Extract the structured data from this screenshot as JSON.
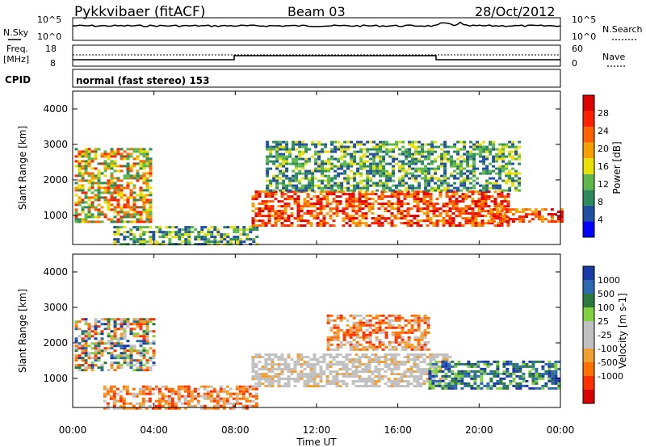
{
  "header": {
    "station": "Pykkvibaer (fitACF)",
    "beam": "Beam 03",
    "date": "28/Oct/2012"
  },
  "noise_panel": {
    "left_label": "N.Sky",
    "right_label": "N.Search",
    "left_ticks": [
      "10^5",
      "10^0"
    ],
    "right_ticks": [
      "10^5",
      "10^0"
    ]
  },
  "freq_panel": {
    "left_label_top": "Freq.",
    "left_label_bottom": "[MHz]",
    "right_label": "Nave",
    "left_ticks": [
      "18",
      "8"
    ],
    "right_ticks": [
      "60",
      "0"
    ]
  },
  "cpid": {
    "label": "CPID",
    "text": "normal (fast stereo) 153"
  },
  "colors": {
    "power_scale": [
      "#0000ff",
      "#1f4fa0",
      "#2d8a5a",
      "#5cb84a",
      "#e8e000",
      "#f5a000",
      "#ff6000",
      "#ff2000",
      "#e00000"
    ],
    "velocity_scale": [
      "#1a3aa8",
      "#2a6ab0",
      "#2a7a40",
      "#80d040",
      "#c0c0c0",
      "#c0c0c0",
      "#f0a030",
      "#ff7000",
      "#ff3000",
      "#dd0000"
    ]
  },
  "chart_data": [
    {
      "type": "heatmap",
      "title": "Power",
      "xlabel": "Time UT",
      "ylabel": "Slant Range [km]",
      "x_ticks": [
        "00:00",
        "04:00",
        "08:00",
        "12:00",
        "16:00",
        "20:00",
        "00:00"
      ],
      "y_ticks": [
        "1000",
        "2000",
        "3000",
        "4000"
      ],
      "ylim": [
        180,
        4500
      ],
      "colorbar_label": "Power [dB]",
      "colorbar_ticks": [
        "4",
        "8",
        "12",
        "16",
        "20",
        "24",
        "28"
      ],
      "regions": [
        {
          "t0": 0.1,
          "t1": 3.9,
          "r0": 850,
          "r1": 2900,
          "level": "mid-high"
        },
        {
          "t0": 2.0,
          "t1": 9.0,
          "r0": 180,
          "r1": 700,
          "level": "mid"
        },
        {
          "t0": 8.8,
          "t1": 21.5,
          "r0": 700,
          "r1": 1700,
          "level": "high"
        },
        {
          "t0": 9.5,
          "t1": 22.0,
          "r0": 1700,
          "r1": 3100,
          "level": "mid"
        },
        {
          "t0": 20.5,
          "t1": 24.0,
          "r0": 800,
          "r1": 1200,
          "level": "high"
        }
      ]
    },
    {
      "type": "heatmap",
      "title": "Velocity",
      "xlabel": "Time UT",
      "ylabel": "Slant Range [km]",
      "x_ticks": [
        "00:00",
        "04:00",
        "08:00",
        "12:00",
        "16:00",
        "20:00",
        "00:00"
      ],
      "y_ticks": [
        "1000",
        "2000",
        "3000",
        "4000"
      ],
      "ylim": [
        180,
        4500
      ],
      "colorbar_label": "Velocity [m s-1]",
      "colorbar_ticks": [
        "1000",
        "500",
        "100",
        "25",
        "-25",
        "-100",
        "-500",
        "-1000"
      ],
      "regions": [
        {
          "t0": 0.1,
          "t1": 4.0,
          "r0": 1200,
          "r1": 2700,
          "level": "mixed"
        },
        {
          "t0": 1.5,
          "t1": 9.0,
          "r0": 180,
          "r1": 800,
          "level": "negative"
        },
        {
          "t0": 8.8,
          "t1": 18.5,
          "r0": 800,
          "r1": 1700,
          "level": "near-zero"
        },
        {
          "t0": 12.5,
          "t1": 17.5,
          "r0": 1800,
          "r1": 2800,
          "level": "negative"
        },
        {
          "t0": 17.5,
          "t1": 24.0,
          "r0": 700,
          "r1": 1500,
          "level": "positive"
        }
      ]
    }
  ]
}
